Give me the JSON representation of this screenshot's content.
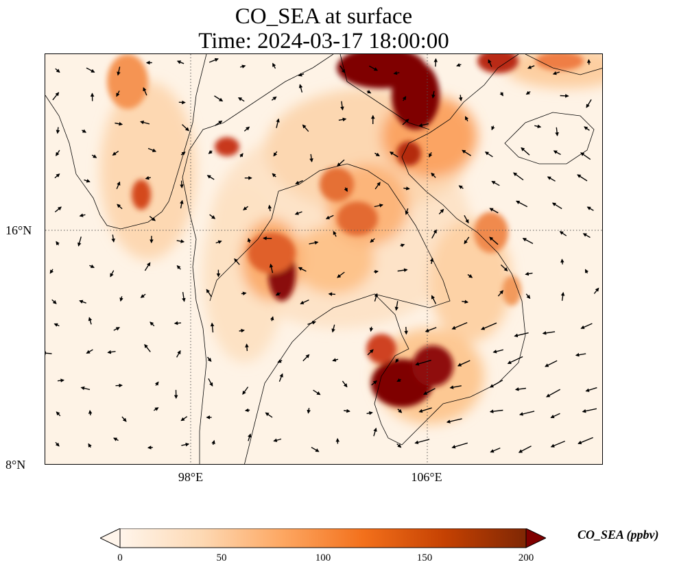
{
  "title": {
    "line1": "CO_SEA at surface",
    "line2": "Time: 2024-03-17 18:00:00"
  },
  "map": {
    "lat_labels": [
      "16°N",
      "8°N"
    ],
    "lon_labels": [
      "98°E",
      "106°E"
    ],
    "gridlines": "dotted",
    "colormap": [
      "#fff5eb",
      "#fdd9b4",
      "#fda762",
      "#f3701b",
      "#c54102",
      "#7f2704"
    ],
    "overflow_color": "#7f0000"
  },
  "colorbar": {
    "label": "CO_SEA (ppbv)",
    "ticks": [
      "0",
      "50",
      "100",
      "150",
      "200"
    ],
    "range": [
      0,
      200
    ],
    "extend": "both"
  }
}
